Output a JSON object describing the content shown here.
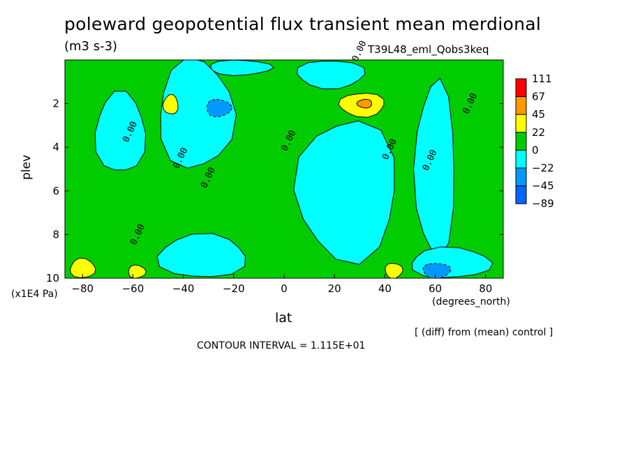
{
  "title": "poleward geopotential flux transient mean merdional",
  "units": "(m3 s-3)",
  "run_id": "T39L48_eml_Qobs3keq",
  "note": "[ (diff) from (mean) control ]",
  "contour_interval_text": "CONTOUR INTERVAL = 1.115E+01",
  "chart_data": {
    "type": "heatmap",
    "xlabel": "lat",
    "x_units": "(degrees_north)",
    "ylabel": "plev",
    "y_units": "(x1E4 Pa)",
    "xlim": [
      -87,
      87
    ],
    "ylim": [
      10,
      0
    ],
    "x_ticks": [
      -80,
      -60,
      -40,
      -20,
      0,
      20,
      40,
      60,
      80
    ],
    "y_ticks": [
      2,
      4,
      6,
      8,
      10
    ],
    "colorbar": {
      "levels": [
        "111",
        "67",
        "45",
        "22",
        "0",
        "-22",
        "-45",
        "-89"
      ],
      "colors": [
        "#ff0000",
        "#ff9900",
        "#ffff00",
        "#00cc00",
        "#00ffff",
        "#0099ff",
        "#0066ff"
      ]
    },
    "background_color": "#00cc00",
    "regions": [
      {
        "sign": "negative",
        "level": "0 to -22",
        "lat_range": [
          -75,
          -55
        ],
        "plev_range": [
          1.5,
          5.2
        ]
      },
      {
        "sign": "negative",
        "level": "0 to -22",
        "lat_range": [
          -50,
          -20
        ],
        "plev_range": [
          0,
          5.0
        ]
      },
      {
        "sign": "negative",
        "level": "0 to -22",
        "lat_range": [
          -30,
          -5
        ],
        "plev_range": [
          0,
          0.7
        ]
      },
      {
        "sign": "negative",
        "level": "0 to -22",
        "lat_range": [
          5,
          32
        ],
        "plev_range": [
          0,
          1.3
        ]
      },
      {
        "sign": "negative",
        "level": "0 to -22",
        "lat_range": [
          5,
          45
        ],
        "plev_range": [
          2.7,
          9.2
        ]
      },
      {
        "sign": "negative",
        "level": "0 to -22",
        "lat_range": [
          52,
          68
        ],
        "plev_range": [
          1.0,
          9.0
        ]
      },
      {
        "sign": "negative",
        "level": "0 to -22",
        "lat_range": [
          -50,
          -15
        ],
        "plev_range": [
          8.0,
          10
        ]
      },
      {
        "sign": "negative",
        "level": "0 to -22",
        "lat_range": [
          50,
          82
        ],
        "plev_range": [
          8.6,
          10
        ]
      },
      {
        "sign": "negative",
        "level": "-22 to -45",
        "lat_range": [
          -31,
          -21
        ],
        "plev_range": [
          1.8,
          2.6
        ]
      },
      {
        "sign": "negative",
        "level": "-22 to -45",
        "lat_range": [
          55,
          66
        ],
        "plev_range": [
          9.3,
          10
        ]
      },
      {
        "sign": "positive",
        "level": "22 to 45",
        "lat_range": [
          22,
          40
        ],
        "plev_range": [
          1.5,
          2.6
        ]
      },
      {
        "sign": "positive",
        "level": "45 to 67",
        "lat_range": [
          29,
          35
        ],
        "plev_range": [
          1.8,
          2.2
        ]
      },
      {
        "sign": "positive",
        "level": "22 to 45",
        "lat_range": [
          -48,
          -42
        ],
        "plev_range": [
          1.6,
          2.5
        ]
      },
      {
        "sign": "positive",
        "level": "22 to 45",
        "lat_range": [
          -85,
          -75
        ],
        "plev_range": [
          9.1,
          10
        ]
      },
      {
        "sign": "positive",
        "level": "22 to 45",
        "lat_range": [
          -62,
          -55
        ],
        "plev_range": [
          9.4,
          10
        ]
      },
      {
        "sign": "positive",
        "level": "22 to 45",
        "lat_range": [
          40,
          47
        ],
        "plev_range": [
          9.3,
          10
        ]
      }
    ],
    "contour_labels": [
      {
        "text": "0.00",
        "lat": -62,
        "plev": 3.8
      },
      {
        "text": "0.00",
        "lat": -42,
        "plev": 5.0
      },
      {
        "text": "0.00",
        "lat": -31,
        "plev": 5.9
      },
      {
        "text": "0.00",
        "lat": -59,
        "plev": 8.5
      },
      {
        "text": "0.00",
        "lat": 1,
        "plev": 4.2
      },
      {
        "text": "0.00",
        "lat": 41,
        "plev": 4.6
      },
      {
        "text": "0.00",
        "lat": 57,
        "plev": 5.1
      },
      {
        "text": "0.00",
        "lat": 73,
        "plev": 2.5
      },
      {
        "text": "0.00",
        "lat": 29,
        "plev": 0.1
      }
    ]
  }
}
